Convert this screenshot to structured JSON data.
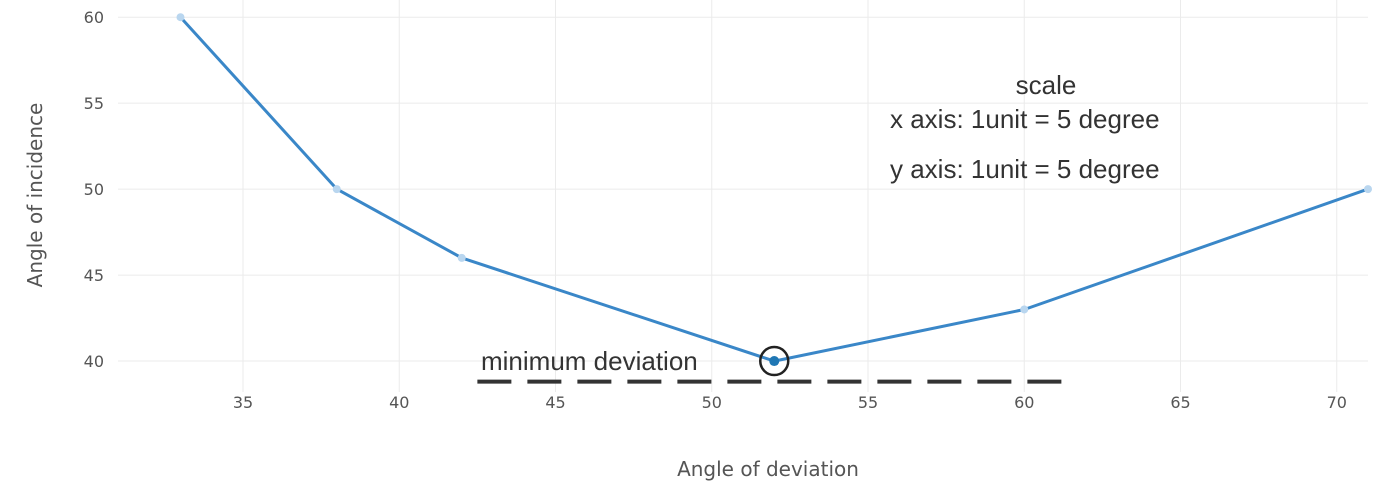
{
  "chart_data": {
    "type": "line",
    "xlabel": "Angle of deviation",
    "ylabel": "Angle of incidence",
    "xlim": [
      31,
      71
    ],
    "ylim": [
      38.2,
      61
    ],
    "xticks": [
      35,
      40,
      45,
      50,
      55,
      60,
      65,
      70
    ],
    "yticks": [
      40,
      45,
      50,
      55,
      60
    ],
    "grid": true,
    "series": [
      {
        "x": [
          33,
          38,
          42,
          52,
          60,
          71
        ],
        "y": [
          60,
          50,
          46,
          40,
          43,
          50
        ]
      }
    ],
    "annotations": {
      "minimum_label": "minimum deviation",
      "minimum_point": {
        "x": 52,
        "y": 40
      },
      "dashed_line": {
        "x_start": 42.5,
        "x_end": 61.5,
        "y": 38.8
      },
      "scale_title": "scale",
      "scale_x": "x axis: 1unit = 5 degree",
      "scale_y": "y axis: 1unit = 5 degree"
    },
    "colors": {
      "line": "#3a87c8",
      "marker": "#b9d6ef",
      "minimum_marker": "#1f77b4",
      "grid": "#ebebeb",
      "dash": "#333333",
      "circle": "#222222"
    }
  }
}
